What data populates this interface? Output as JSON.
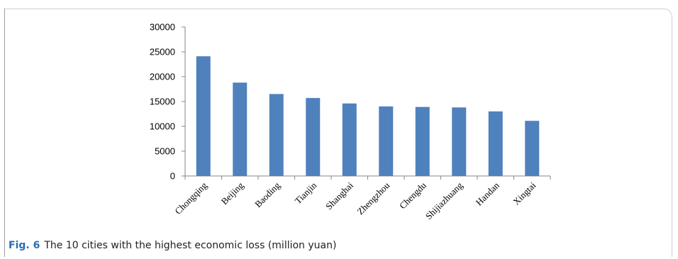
{
  "caption": {
    "label": "Fig. 6",
    "text": "The 10 cities with the highest economic loss (million yuan)"
  },
  "chart_data": {
    "type": "bar",
    "categories": [
      "Chongqing",
      "Beijing",
      "Baoding",
      "Tianjin",
      "Shanghai",
      "Zhengzhou",
      "Chengdu",
      "Shijiazhuang",
      "Handan",
      "Xingtai"
    ],
    "values": [
      24100,
      18800,
      16500,
      15700,
      14600,
      14000,
      13900,
      13800,
      13000,
      11100
    ],
    "ylim": [
      0,
      30000
    ],
    "yticks": [
      0,
      5000,
      10000,
      15000,
      20000,
      25000,
      30000
    ],
    "bar_color": "#4f81bd",
    "grid": false,
    "legend": "none"
  }
}
